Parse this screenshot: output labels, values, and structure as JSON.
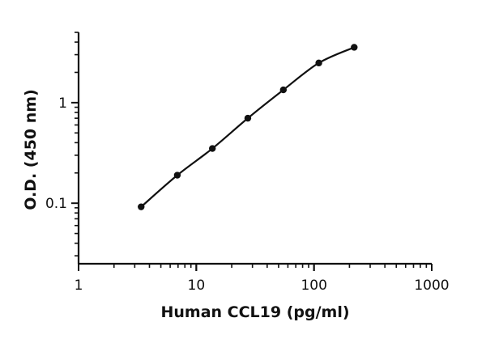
{
  "chart_data": {
    "type": "scatter",
    "title": "",
    "xlabel": "Human CCL19 (pg/ml)",
    "ylabel": "O.D. (450 nm)",
    "xscale": "log",
    "yscale": "log",
    "xlim": [
      1,
      1000
    ],
    "ylim": [
      0.025,
      5
    ],
    "xticks": [
      1,
      10,
      100,
      1000
    ],
    "xtick_labels": [
      "1",
      "10",
      "100",
      "1000"
    ],
    "yticks": [
      0.1,
      1
    ],
    "ytick_labels": [
      "0.1",
      "1"
    ],
    "grid": false,
    "legend": "none",
    "series": [
      {
        "x": [
          3.4,
          6.9,
          13.7,
          27.4,
          54.9,
          109.8,
          219.5
        ],
        "y": [
          0.092,
          0.19,
          0.35,
          0.7,
          1.34,
          2.48,
          3.55
        ],
        "marker": "circle",
        "fit_line": true,
        "color": "#111111"
      }
    ]
  }
}
